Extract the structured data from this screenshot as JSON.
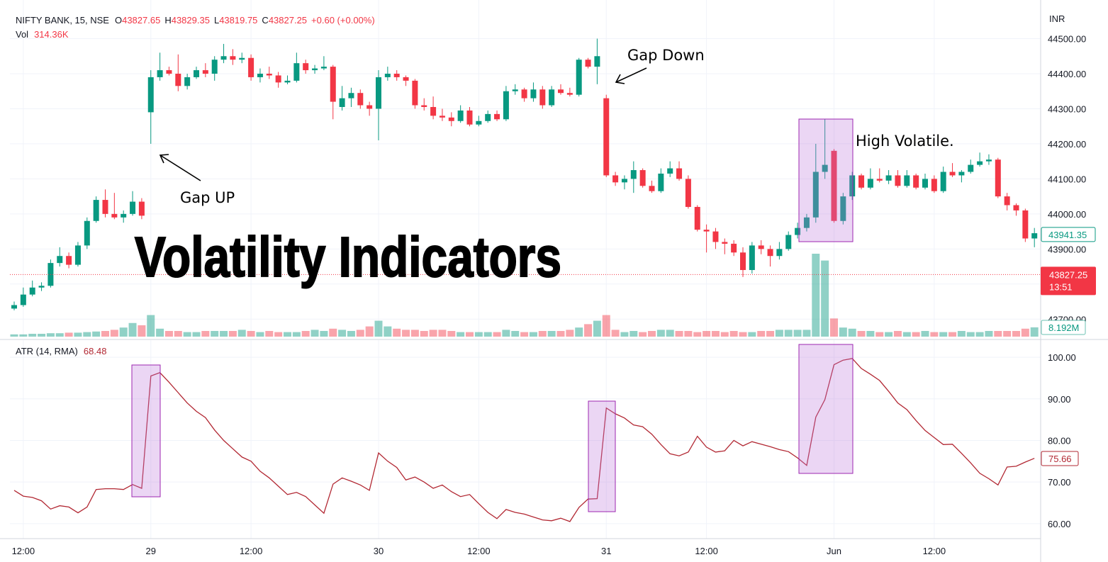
{
  "header": {
    "symbol": "NIFTY BANK, 15, NSE",
    "ohlc": [
      {
        "key": "O",
        "value": "43827.65"
      },
      {
        "key": "H",
        "value": "43829.35"
      },
      {
        "key": "L",
        "value": "43819.75"
      },
      {
        "key": "C",
        "value": "43827.25"
      }
    ],
    "change": "+0.60 (+0.00%)",
    "volume_key": "Vol",
    "volume_value": "314.36K",
    "currency": "INR"
  },
  "chart_data": [
    {
      "type": "candlestick",
      "title": "Volatility Indicators",
      "annotations": [
        "Gap UP",
        "Gap Down",
        "High Volatile."
      ],
      "up_color": "#089981",
      "down_color": "#f23645",
      "grid": true,
      "ylim": [
        43650,
        44590
      ],
      "yticks": [
        {
          "value": 43700,
          "label": "43700.00"
        },
        {
          "value": 43800,
          "label": "43800.00"
        },
        {
          "value": 43900,
          "label": "43900.00"
        },
        {
          "value": 44000,
          "label": "44000.00"
        },
        {
          "value": 44100,
          "label": "44100.00"
        },
        {
          "value": 44200,
          "label": "44200.00"
        },
        {
          "value": 44300,
          "label": "44300.00"
        },
        {
          "value": 44400,
          "label": "44400.00"
        },
        {
          "value": 44500,
          "label": "44500.00"
        }
      ],
      "xticks": [
        {
          "value": 1,
          "label": "12:00"
        },
        {
          "value": 15,
          "label": "29"
        },
        {
          "value": 26,
          "label": "12:00"
        },
        {
          "value": 40,
          "label": "30"
        },
        {
          "value": 51,
          "label": "12:00"
        },
        {
          "value": 65,
          "label": "31"
        },
        {
          "value": 76,
          "label": "12:00"
        },
        {
          "value": 90,
          "label": "Jun"
        },
        {
          "value": 101,
          "label": "12:00"
        }
      ],
      "last_price": {
        "value": 43941.35,
        "label": "43941.35"
      },
      "current_price": {
        "value": 43827.25,
        "label": "43827.25",
        "countdown": "13:51"
      },
      "volume_last_label": "8.192M",
      "ohlc": [
        [
          43730,
          43750,
          43725,
          43740
        ],
        [
          43740,
          43790,
          43735,
          43770
        ],
        [
          43770,
          43810,
          43765,
          43790
        ],
        [
          43790,
          43805,
          43780,
          43795
        ],
        [
          43795,
          43870,
          43790,
          43860
        ],
        [
          43860,
          43905,
          43850,
          43880
        ],
        [
          43880,
          43890,
          43845,
          43855
        ],
        [
          43855,
          43920,
          43850,
          43910
        ],
        [
          43910,
          43990,
          43900,
          43980
        ],
        [
          43980,
          44050,
          43975,
          44040
        ],
        [
          44040,
          44070,
          43990,
          44000
        ],
        [
          44000,
          44060,
          43985,
          43990
        ],
        [
          43990,
          44010,
          43975,
          44000
        ],
        [
          44000,
          44065,
          43995,
          44035
        ],
        [
          44035,
          44045,
          43985,
          43995
        ],
        [
          44290,
          44410,
          44200,
          44390
        ],
        [
          44390,
          44460,
          44380,
          44410
        ],
        [
          44410,
          44420,
          44395,
          44400
        ],
        [
          44400,
          44455,
          44350,
          44365
        ],
        [
          44365,
          44400,
          44355,
          44390
        ],
        [
          44390,
          44420,
          44385,
          44410
        ],
        [
          44410,
          44430,
          44390,
          44400
        ],
        [
          44400,
          44450,
          44380,
          44440
        ],
        [
          44440,
          44485,
          44430,
          44450
        ],
        [
          44450,
          44470,
          44425,
          44440
        ],
        [
          44440,
          44460,
          44430,
          44445
        ],
        [
          44445,
          44455,
          44380,
          44390
        ],
        [
          44390,
          44415,
          44375,
          44400
        ],
        [
          44400,
          44420,
          44385,
          44395
        ],
        [
          44395,
          44405,
          44360,
          44375
        ],
        [
          44375,
          44395,
          44370,
          44380
        ],
        [
          44380,
          44460,
          44375,
          44430
        ],
        [
          44430,
          44440,
          44400,
          44410
        ],
        [
          44410,
          44425,
          44400,
          44415
        ],
        [
          44415,
          44450,
          44410,
          44420
        ],
        [
          44420,
          44425,
          44270,
          44320
        ],
        [
          44305,
          44365,
          44295,
          44330
        ],
        [
          44330,
          44360,
          44305,
          44345
        ],
        [
          44345,
          44355,
          44300,
          44310
        ],
        [
          44310,
          44320,
          44280,
          44300
        ],
        [
          44300,
          44410,
          44210,
          44390
        ],
        [
          44390,
          44420,
          44380,
          44400
        ],
        [
          44400,
          44410,
          44380,
          44390
        ],
        [
          44390,
          44395,
          44365,
          44380
        ],
        [
          44380,
          44385,
          44300,
          44310
        ],
        [
          44310,
          44330,
          44295,
          44305
        ],
        [
          44305,
          44335,
          44270,
          44280
        ],
        [
          44280,
          44300,
          44265,
          44275
        ],
        [
          44275,
          44290,
          44250,
          44265
        ],
        [
          44265,
          44310,
          44260,
          44295
        ],
        [
          44295,
          44305,
          44250,
          44255
        ],
        [
          44255,
          44280,
          44250,
          44265
        ],
        [
          44265,
          44295,
          44260,
          44285
        ],
        [
          44285,
          44295,
          44265,
          44270
        ],
        [
          44270,
          44365,
          44265,
          44350
        ],
        [
          44350,
          44370,
          44340,
          44355
        ],
        [
          44355,
          44360,
          44320,
          44330
        ],
        [
          44330,
          44375,
          44320,
          44355
        ],
        [
          44355,
          44365,
          44300,
          44310
        ],
        [
          44310,
          44365,
          44305,
          44355
        ],
        [
          44355,
          44370,
          44340,
          44345
        ],
        [
          44345,
          44360,
          44335,
          44340
        ],
        [
          44340,
          44445,
          44335,
          44440
        ],
        [
          44440,
          44445,
          44415,
          44420
        ],
        [
          44420,
          44500,
          44370,
          44450
        ],
        [
          44330,
          44340,
          44105,
          44110
        ],
        [
          44110,
          44120,
          44080,
          44090
        ],
        [
          44090,
          44110,
          44070,
          44100
        ],
        [
          44100,
          44150,
          44060,
          44125
        ],
        [
          44125,
          44130,
          44075,
          44080
        ],
        [
          44080,
          44095,
          44060,
          44065
        ],
        [
          44065,
          44130,
          44060,
          44115
        ],
        [
          44115,
          44150,
          44105,
          44130
        ],
        [
          44130,
          44150,
          44095,
          44100
        ],
        [
          44100,
          44110,
          44015,
          44020
        ],
        [
          44020,
          44025,
          43950,
          43955
        ],
        [
          43955,
          43970,
          43890,
          43950
        ],
        [
          43950,
          43960,
          43900,
          43920
        ],
        [
          43920,
          43930,
          43885,
          43915
        ],
        [
          43915,
          43925,
          43880,
          43890
        ],
        [
          43890,
          43905,
          43820,
          43840
        ],
        [
          43840,
          43920,
          43830,
          43910
        ],
        [
          43910,
          43925,
          43885,
          43900
        ],
        [
          43900,
          43910,
          43850,
          43880
        ],
        [
          43880,
          43920,
          43870,
          43900
        ],
        [
          43900,
          43950,
          43895,
          43940
        ],
        [
          43940,
          43975,
          43930,
          43960
        ],
        [
          43960,
          44000,
          43950,
          43990
        ],
        [
          43990,
          44200,
          43975,
          44120
        ],
        [
          44120,
          44270,
          44100,
          44140
        ],
        [
          44180,
          44185,
          43975,
          43980
        ],
        [
          43980,
          44060,
          43970,
          44050
        ],
        [
          44050,
          44120,
          44040,
          44110
        ],
        [
          44110,
          44115,
          44070,
          44075
        ],
        [
          44075,
          44130,
          44070,
          44100
        ],
        [
          44100,
          44130,
          44090,
          44095
        ],
        [
          44095,
          44125,
          44085,
          44110
        ],
        [
          44110,
          44125,
          44075,
          44080
        ],
        [
          44080,
          44125,
          44075,
          44110
        ],
        [
          44110,
          44115,
          44070,
          44075
        ],
        [
          44075,
          44115,
          44070,
          44100
        ],
        [
          44100,
          44110,
          44060,
          44065
        ],
        [
          44065,
          44135,
          44060,
          44120
        ],
        [
          44120,
          44145,
          44105,
          44110
        ],
        [
          44110,
          44125,
          44090,
          44120
        ],
        [
          44120,
          44155,
          44115,
          44140
        ],
        [
          44140,
          44175,
          44135,
          44150
        ],
        [
          44150,
          44170,
          44140,
          44155
        ],
        [
          44155,
          44160,
          44045,
          44050
        ],
        [
          44050,
          44060,
          44010,
          44025
        ],
        [
          44025,
          44030,
          43995,
          44010
        ],
        [
          44010,
          44015,
          43920,
          43930
        ],
        [
          43930,
          43960,
          43905,
          43945
        ]
      ],
      "volume": [
        2,
        2,
        2.5,
        2.5,
        3,
        3,
        3.5,
        3.5,
        4,
        4.5,
        5,
        6,
        8,
        12,
        10,
        19,
        7,
        5,
        5,
        4,
        4,
        5,
        5,
        5,
        5,
        6,
        5,
        4,
        5,
        4,
        4,
        4,
        5,
        6,
        5,
        7,
        6,
        5,
        6,
        9,
        14,
        9,
        7,
        6,
        6,
        5,
        6,
        6,
        5,
        4,
        4,
        4,
        4,
        4,
        6,
        5,
        4,
        4,
        5,
        5,
        5,
        6,
        8,
        11,
        14,
        19,
        6,
        4,
        5,
        4,
        5,
        6,
        6,
        5,
        5,
        4,
        5,
        5,
        4,
        5,
        4,
        4,
        5,
        5,
        6,
        6,
        6,
        6,
        73,
        67,
        16,
        8,
        7,
        5,
        5,
        4,
        4,
        5,
        4,
        4,
        5,
        4,
        4,
        4,
        5,
        4,
        4,
        5,
        5,
        5,
        5,
        7,
        8.192
      ]
    },
    {
      "type": "line",
      "name": "ATR (14, RMA)",
      "legend_value": "68.48",
      "color": "#b22833",
      "ylim": [
        56.4,
        104.1
      ],
      "yticks": [
        {
          "value": 60,
          "label": "60.00"
        },
        {
          "value": 70,
          "label": "70.00"
        },
        {
          "value": 80,
          "label": "80.00"
        },
        {
          "value": 90,
          "label": "90.00"
        },
        {
          "value": 100,
          "label": "100.00"
        }
      ],
      "last_label": {
        "value": 75.66,
        "label": "75.66"
      },
      "values": [
        68,
        66.6,
        66.3,
        65.5,
        63.5,
        64.3,
        64,
        62.6,
        64,
        68.2,
        68.4,
        68.4,
        68.2,
        69.4,
        68.5,
        95.5,
        96.3,
        94,
        91.5,
        89,
        87,
        85.5,
        82.5,
        80,
        78,
        76,
        75,
        72.6,
        71,
        69,
        67,
        67.5,
        66.5,
        64.5,
        62.5,
        69.5,
        71,
        70.2,
        69.3,
        68,
        77,
        75,
        73.5,
        70.5,
        71.2,
        70,
        68.5,
        69.3,
        67.7,
        66.5,
        67,
        64.8,
        62.7,
        61.2,
        63.4,
        62.7,
        62.3,
        61.6,
        60.9,
        60.7,
        61.3,
        60.5,
        63.9,
        65.9,
        66,
        87.8,
        86.4,
        85.4,
        83.7,
        83.3,
        81.5,
        79,
        76.8,
        76.3,
        77.2,
        81,
        78.4,
        77.2,
        77.5,
        80,
        78.7,
        79.7,
        79.1,
        78.5,
        77.8,
        77.3,
        75.8,
        74,
        85.6,
        89.8,
        98.2,
        99.3,
        99.7,
        97.3,
        95.9,
        94.4,
        91.8,
        89,
        87.4,
        84.8,
        82.4,
        80.7,
        79,
        79.1,
        76.9,
        74.6,
        72.1,
        70.8,
        69.3,
        73.6,
        73.8,
        74.8,
        75.7
      ]
    }
  ]
}
